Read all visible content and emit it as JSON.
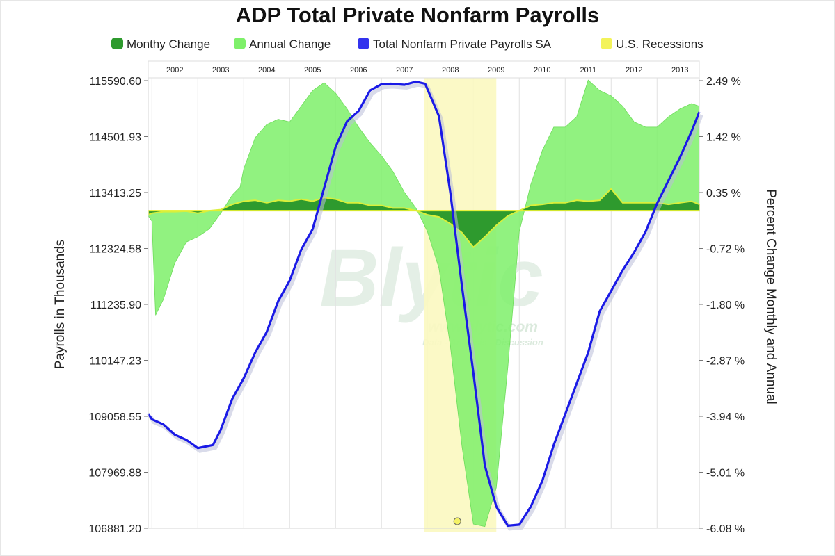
{
  "chart_data": {
    "type": "area",
    "title": "ADP Total Private Nonfarm Payrolls",
    "ylabel": "Payrolls in Thousands",
    "y2label": "Percent Change Monthly and Annual",
    "legend_position": "top",
    "grid": true,
    "x_range": [
      2001.92,
      2013.92
    ],
    "ylim": [
      106881.2,
      115590.6
    ],
    "y2lim": [
      -6.08,
      2.49
    ],
    "year_labels": [
      "2002",
      "2003",
      "2004",
      "2005",
      "2006",
      "2007",
      "2008",
      "2009",
      "2010",
      "2011",
      "2012",
      "2013"
    ],
    "left_ticks": [
      "115590.60",
      "114501.93",
      "113413.25",
      "112324.58",
      "111235.90",
      "110147.23",
      "109058.55",
      "107969.88",
      "106881.20"
    ],
    "right_ticks": [
      "2.49 %",
      "1.42 %",
      "0.35 %",
      "-0.72 %",
      "-1.80 %",
      "-2.87 %",
      "-3.94 %",
      "-5.01 %",
      "-6.08 %"
    ],
    "legend": [
      {
        "name": "Monthy Change",
        "color": "#2e9a2e"
      },
      {
        "name": "Annual Change",
        "color": "#7ef06a"
      },
      {
        "name": "Total Nonfarm Private Payrolls SA",
        "color": "#3333ee"
      },
      {
        "name": "U.S. Recessions",
        "color": "#f3f35a"
      }
    ],
    "recession": {
      "start": 2007.92,
      "end": 2009.5
    },
    "series": [
      {
        "name": "Total Nonfarm Private Payrolls SA",
        "axis": "left",
        "color": "#1a1ae6",
        "x": [
          2001.92,
          2002.0,
          2002.25,
          2002.5,
          2002.75,
          2003.0,
          2003.33,
          2003.5,
          2003.75,
          2004.0,
          2004.25,
          2004.5,
          2004.75,
          2005.0,
          2005.25,
          2005.5,
          2005.75,
          2006.0,
          2006.25,
          2006.5,
          2006.75,
          2007.0,
          2007.2,
          2007.5,
          2007.75,
          2007.95,
          2008.25,
          2008.5,
          2008.75,
          2009.0,
          2009.25,
          2009.5,
          2009.75,
          2010.0,
          2010.25,
          2010.5,
          2010.75,
          2011.0,
          2011.25,
          2011.5,
          2011.75,
          2012.0,
          2012.25,
          2012.5,
          2012.75,
          2013.0,
          2013.25,
          2013.5,
          2013.75,
          2013.92
        ],
        "values": [
          109110,
          109000,
          108900,
          108700,
          108600,
          108440,
          108500,
          108800,
          109400,
          109800,
          110300,
          110700,
          111300,
          111700,
          112300,
          112700,
          113500,
          114300,
          114800,
          115000,
          115400,
          115520,
          115530,
          115510,
          115570,
          115530,
          114900,
          113400,
          111600,
          109900,
          108100,
          107300,
          106930,
          106950,
          107300,
          107800,
          108500,
          109100,
          109700,
          110300,
          111100,
          111500,
          111900,
          112250,
          112650,
          113200,
          113650,
          114100,
          114600,
          114980
        ]
      },
      {
        "name": "Annual Change",
        "axis": "right",
        "color": "#7ef06a",
        "x": [
          2001.92,
          2002.0,
          2002.08,
          2002.25,
          2002.5,
          2002.75,
          2003.0,
          2003.25,
          2003.5,
          2003.75,
          2003.92,
          2004.0,
          2004.25,
          2004.5,
          2004.75,
          2005.0,
          2005.25,
          2005.5,
          2005.75,
          2006.0,
          2006.25,
          2006.5,
          2006.75,
          2007.0,
          2007.25,
          2007.5,
          2007.75,
          2008.0,
          2008.25,
          2008.5,
          2008.75,
          2009.0,
          2009.25,
          2009.5,
          2009.75,
          2010.0,
          2010.25,
          2010.5,
          2010.75,
          2011.0,
          2011.25,
          2011.5,
          2011.75,
          2012.0,
          2012.25,
          2012.5,
          2012.75,
          2013.0,
          2013.25,
          2013.5,
          2013.75,
          2013.92
        ],
        "values": [
          -0.1,
          -0.2,
          -2.0,
          -1.7,
          -1.0,
          -0.6,
          -0.5,
          -0.35,
          -0.05,
          0.3,
          0.45,
          0.8,
          1.4,
          1.65,
          1.75,
          1.7,
          2.0,
          2.3,
          2.45,
          2.25,
          1.95,
          1.6,
          1.3,
          1.05,
          0.75,
          0.35,
          0.05,
          -0.4,
          -1.1,
          -2.6,
          -4.5,
          -6.0,
          -6.05,
          -5.3,
          -3.0,
          -0.4,
          0.5,
          1.15,
          1.6,
          1.6,
          1.8,
          2.5,
          2.3,
          2.2,
          2.0,
          1.7,
          1.6,
          1.6,
          1.8,
          1.95,
          2.05,
          2.0
        ]
      },
      {
        "name": "Monthy Change",
        "axis": "right",
        "color": "#2e9a2e",
        "x": [
          2001.92,
          2002.0,
          2002.25,
          2002.5,
          2002.75,
          2003.0,
          2003.25,
          2003.5,
          2003.75,
          2004.0,
          2004.25,
          2004.5,
          2004.75,
          2005.0,
          2005.25,
          2005.5,
          2005.75,
          2006.0,
          2006.25,
          2006.5,
          2006.75,
          2007.0,
          2007.25,
          2007.5,
          2007.75,
          2008.0,
          2008.25,
          2008.5,
          2008.75,
          2009.0,
          2009.25,
          2009.5,
          2009.75,
          2010.0,
          2010.25,
          2010.5,
          2010.75,
          2011.0,
          2011.25,
          2011.5,
          2011.75,
          2012.0,
          2012.25,
          2012.5,
          2012.75,
          2013.0,
          2013.25,
          2013.5,
          2013.75,
          2013.92
        ],
        "values": [
          -0.08,
          -0.05,
          -0.02,
          -0.02,
          -0.01,
          -0.05,
          0.0,
          0.02,
          0.12,
          0.18,
          0.2,
          0.15,
          0.2,
          0.18,
          0.22,
          0.18,
          0.25,
          0.22,
          0.15,
          0.15,
          0.1,
          0.1,
          0.05,
          0.05,
          0.0,
          -0.08,
          -0.12,
          -0.25,
          -0.42,
          -0.7,
          -0.5,
          -0.28,
          -0.1,
          0.0,
          0.1,
          0.12,
          0.15,
          0.15,
          0.2,
          0.18,
          0.2,
          0.42,
          0.15,
          0.15,
          0.15,
          0.15,
          0.12,
          0.15,
          0.18,
          0.12
        ]
      }
    ]
  },
  "watermark": {
    "brand": "Blytic",
    "url": "www.blytic.com",
    "tagline": "Data - Analysis - Discussion"
  }
}
